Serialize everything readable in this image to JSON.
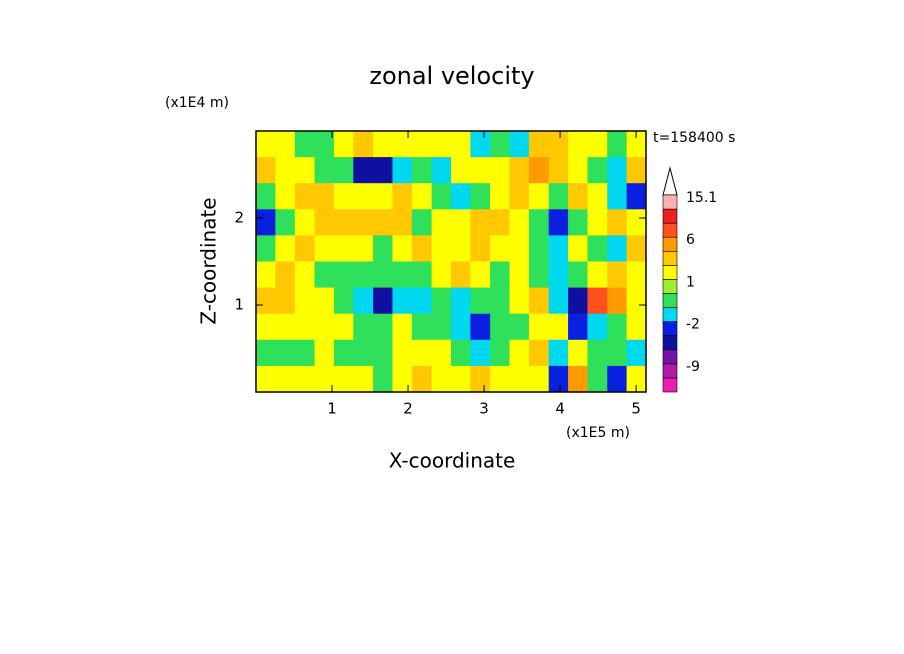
{
  "chart_data": {
    "type": "contour",
    "title": "zonal velocity",
    "x_label": "X-coordinate",
    "y_label": "Z-coordinate",
    "x_unit": "(x1E5 m)",
    "y_unit": "(x1E4 m)",
    "time_label": "t=158400 s",
    "xlim": [
      0,
      5.13
    ],
    "ylim": [
      0,
      3
    ],
    "xticks": [
      1,
      2,
      3,
      4,
      5
    ],
    "yticks": [
      1,
      2
    ],
    "x": [
      0.13,
      0.38,
      0.64,
      0.9,
      1.15,
      1.41,
      1.67,
      1.92,
      2.18,
      2.44,
      2.69,
      2.95,
      3.21,
      3.46,
      3.72,
      3.98,
      4.23,
      4.49,
      4.75,
      5.0
    ],
    "y": [
      2.85,
      2.55,
      2.25,
      1.95,
      1.65,
      1.35,
      1.05,
      0.75,
      0.45,
      0.15
    ],
    "z": [
      [
        1.5,
        1.5,
        -0.5,
        -0.5,
        1.5,
        3,
        1.5,
        1.5,
        1.5,
        1.5,
        1.5,
        -1.5,
        -0.5,
        -1.5,
        3,
        3,
        1.5,
        1.5,
        -0.5,
        1.5
      ],
      [
        3,
        1.5,
        1.5,
        -0.5,
        -0.5,
        -5,
        -5,
        -1.5,
        -0.5,
        -1.5,
        1.5,
        1.5,
        1.5,
        3,
        5,
        3,
        1.5,
        -0.5,
        -1.5,
        3
      ],
      [
        -0.5,
        1.5,
        3,
        3,
        1.5,
        1.5,
        1.5,
        3,
        1.5,
        -0.5,
        -1.5,
        -0.5,
        1.5,
        3,
        1.5,
        -0.5,
        3,
        1.5,
        -1.5,
        -3
      ],
      [
        -3,
        -0.5,
        1.5,
        3,
        3,
        3,
        3,
        3,
        -0.5,
        1.5,
        1.5,
        3,
        3,
        1.5,
        -0.5,
        -3,
        -0.5,
        1.5,
        3,
        1.5
      ],
      [
        -0.5,
        1.5,
        3,
        1.5,
        1.5,
        1.5,
        -0.5,
        1.5,
        3,
        1.5,
        1.5,
        3,
        1.5,
        1.5,
        -0.5,
        -1.5,
        1.5,
        -0.5,
        -1.5,
        3
      ],
      [
        1.5,
        3,
        1.5,
        -0.5,
        -0.5,
        -0.5,
        -0.5,
        -0.5,
        -0.5,
        1.5,
        3,
        1.5,
        -0.5,
        1.5,
        -0.5,
        -1.5,
        -0.5,
        1.5,
        3,
        1.5
      ],
      [
        3,
        3,
        1.5,
        1.5,
        -0.5,
        -1.5,
        -5,
        -1.5,
        -1.5,
        -0.5,
        -1.5,
        -0.5,
        -0.5,
        1.5,
        3,
        -1.5,
        -5,
        7,
        5,
        1.5
      ],
      [
        1.5,
        1.5,
        1.5,
        1.5,
        1.5,
        -0.5,
        -0.5,
        1.5,
        -0.5,
        -0.5,
        -1.5,
        -3,
        -0.5,
        -0.5,
        1.5,
        1.5,
        -3,
        -1.5,
        -0.5,
        1.5
      ],
      [
        -0.5,
        -0.5,
        -0.5,
        1.5,
        -0.5,
        -0.5,
        -0.5,
        1.5,
        1.5,
        1.5,
        -0.5,
        -1.5,
        -0.5,
        1.5,
        3,
        -1.5,
        1.5,
        -0.5,
        -0.5,
        -1.5
      ],
      [
        1.5,
        1.5,
        1.5,
        1.5,
        1.5,
        1.5,
        -0.5,
        1.5,
        3,
        1.5,
        1.5,
        3,
        1.5,
        1.5,
        1.5,
        -3,
        5,
        -0.5,
        -3,
        1.5
      ]
    ],
    "colorbar": {
      "levels": [
        -15,
        -12,
        -9,
        -6,
        -4,
        -2,
        -1,
        0,
        1,
        2,
        4,
        6,
        9,
        12,
        15.1
      ],
      "colors": [
        "#ee1cae",
        "#b41aa8",
        "#7810a8",
        "#1010a0",
        "#0a20e0",
        "#00d8f0",
        "#2ee05a",
        "#a0ee30",
        "#ffff00",
        "#ffc800",
        "#ff9a00",
        "#ff5020",
        "#ee2020",
        "#ffb0b0"
      ],
      "ticks": [
        15.1,
        6,
        1,
        -2,
        -9
      ]
    }
  }
}
